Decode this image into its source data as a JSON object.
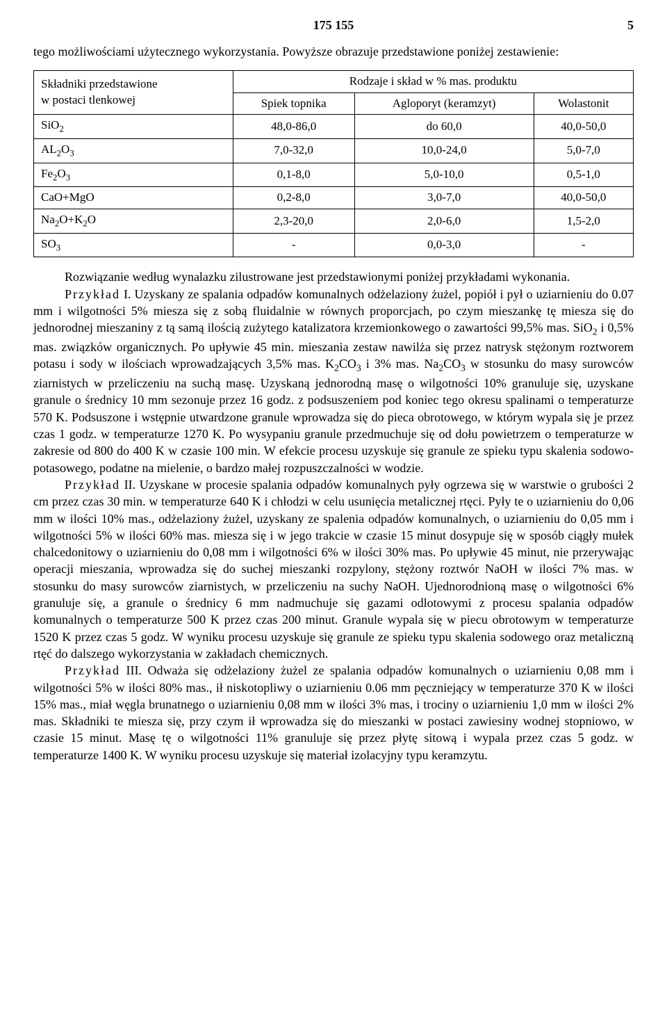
{
  "header": {
    "docnum": "175 155",
    "pagenum": "5"
  },
  "intro": "tego możliwościami użytecznego wykorzystania. Powyższe obrazuje przedstawione poniżej zestawienie:",
  "table": {
    "corner_top": "Składniki przedstawione",
    "corner_bottom": "w postaci tlenkowej",
    "top_header": "Rodzaje i skład w % mas. produktu",
    "cols": [
      "Spiek topnika",
      "Agloporyt (keramzyt)",
      "Wolastonit"
    ],
    "rows": [
      {
        "label_html": "SiO<sub>2</sub>",
        "c": [
          "48,0-86,0",
          "do 60,0",
          "40,0-50,0"
        ]
      },
      {
        "label_html": "AL<sub>2</sub>O<sub>3</sub>",
        "c": [
          "7,0-32,0",
          "10,0-24,0",
          "5,0-7,0"
        ]
      },
      {
        "label_html": "Fe<sub>2</sub>O<sub>3</sub>",
        "c": [
          "0,1-8,0",
          "5,0-10,0",
          "0,5-1,0"
        ]
      },
      {
        "label_html": "CaO+MgO",
        "c": [
          "0,2-8,0",
          "3,0-7,0",
          "40,0-50,0"
        ]
      },
      {
        "label_html": "Na<sub>2</sub>O+K<sub>2</sub>O",
        "c": [
          "2,3-20,0",
          "2,0-6,0",
          "1,5-2,0"
        ]
      },
      {
        "label_html": "SO<sub>3</sub>",
        "c": [
          "-",
          "0,0-3,0",
          "-"
        ]
      }
    ]
  },
  "paragraphs": [
    "Rozwiązanie według wynalazku zilustrowane jest przedstawionymi poniżej przykładami wykonania.",
    "<span class=\"spaced\">Przykład</span> I. Uzyskany ze spalania odpadów komunalnych odżelaziony żużel, popiół i pył o uziarnieniu do 0.07 mm i wilgotności 5% miesza się z sobą fluidalnie w równych proporcjach, po czym mieszankę tę miesza się do jednorodnej mieszaniny z tą samą ilością zużytego katalizatora krzemionkowego o zawartości 99,5% mas. SiO<sub>2</sub> i 0,5% mas. związków organicznych. Po upływie 45 min. mieszania zestaw nawilża się przez natrysk stężonym roztworem potasu i sody w ilościach wprowadzających 3,5% mas. K<sub>2</sub>CO<sub>3</sub> i 3% mas. Na<sub>2</sub>CO<sub>3</sub> w stosunku do masy surowców ziarnistych w przeliczeniu na suchą masę. Uzyskaną jednorodną masę o wilgotności 10% granuluje się, uzyskane granule o średnicy 10 mm sezonuje przez 16 godz. z podsuszeniem pod koniec tego okresu spalinami o temperaturze 570 K. Podsuszone i wstępnie utwardzone granule wprowadza się do pieca obrotowego, w którym wypala się je przez czas 1 godz. w temperaturze 1270 K. Po wysypaniu granule przedmuchuje się od dołu powietrzem o temperaturze w zakresie od 800 do 400 K w czasie 100 min. W efekcie procesu uzyskuje się granule ze spieku typu skalenia sodowo-potasowego, podatne na mielenie, o bardzo małej rozpuszczalności w wodzie.",
    "<span class=\"spaced\">Przykład</span> II. Uzyskane w procesie spalania odpadów komunalnych pyły ogrzewa się w warstwie o grubości 2 cm przez czas 30 min. w temperaturze 640 K i chłodzi w celu usunięcia metalicznej rtęci. Pyły te o uziarnieniu do 0,06 mm w ilości 10% mas., odżelaziony żużel, uzyskany ze spalenia odpadów komunalnych, o uziarnieniu do 0,05 mm i wilgotności 5% w ilości 60% mas. miesza się i w jego trakcie w czasie 15 minut dosypuje się w sposób ciągły mułek chalcedonitowy o uziarnieniu do 0,08 mm i wilgotności 6% w ilości 30% mas. Po upływie 45 minut, nie przerywając operacji mieszania, wprowadza się do suchej mieszanki rozpylony, stężony roztwór NaOH w ilości 7% mas. w stosunku do masy surowców ziarnistych, w przeliczeniu na suchy NaOH. Ujednorodnioną masę o wilgotności 6% granuluje się, a granule o średnicy 6 mm nadmuchuje się gazami odlotowymi z procesu spalania odpadów komunalnych o temperaturze 500 K przez czas 200 minut. Granule wypala się w piecu obrotowym w temperaturze 1520 K przez czas 5 godz. W wyniku procesu uzyskuje się granule ze spieku typu skalenia sodowego oraz metaliczną rtęć do dalszego wykorzystania w zakładach chemicznych.",
    "<span class=\"spaced\">Przykład</span> III. Odważa się odżelaziony żużel ze spalania odpadów komunalnych o uziarnieniu 0,08 mm i wilgotności 5% w ilości 80% mas., ił niskotopliwy o uziarnieniu 0.06 mm pęczniejący w temperaturze 370 K w ilości 15% mas., miał węgla brunatnego o uziarnieniu 0,08 mm w ilości 3% mas, i trociny o uziarnieniu 1,0 mm w ilości 2% mas. Składniki te miesza się, przy czym ił wprowadza się do mieszanki w postaci zawiesiny wodnej stopniowo, w czasie 15 minut. Masę tę o wilgotności 11% granuluje się przez płytę sitową i wypala przez czas 5 godz. w temperaturze 1400 K. W wyniku procesu uzyskuje się materiał izolacyjny typu keramzytu."
  ]
}
